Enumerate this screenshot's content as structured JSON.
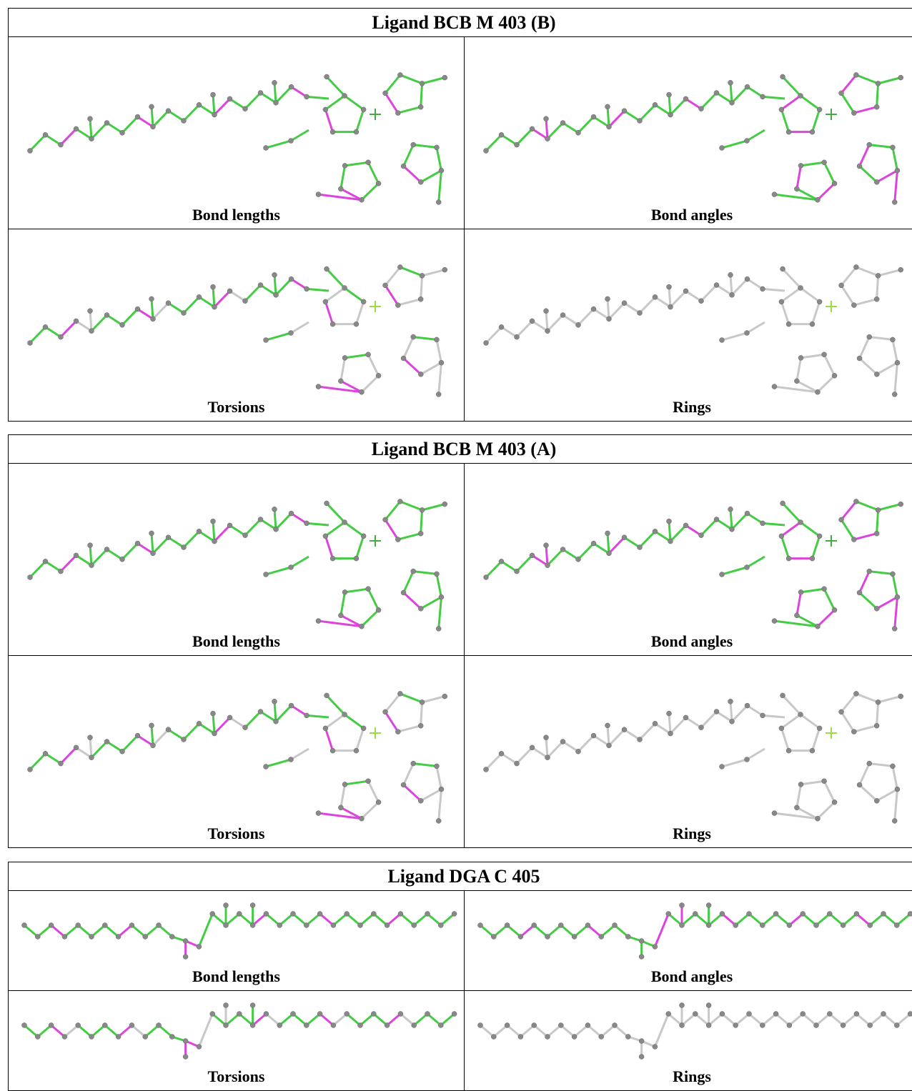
{
  "tables": [
    {
      "title": "Ligand BCB M 403 (B)",
      "panels": [
        "Bond lengths",
        "Bond angles",
        "Torsions",
        "Rings"
      ]
    },
    {
      "title": "Ligand BCB M 403 (A)",
      "panels": [
        "Bond lengths",
        "Bond angles",
        "Torsions",
        "Rings"
      ]
    },
    {
      "title": "Ligand DGA C 405",
      "panels": [
        "Bond lengths",
        "Bond angles",
        "Torsions",
        "Rings"
      ]
    }
  ]
}
